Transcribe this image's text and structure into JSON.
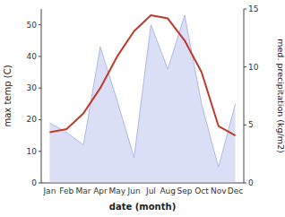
{
  "chart_data": {
    "type": "line",
    "categories": [
      "Jan",
      "Feb",
      "Mar",
      "Apr",
      "May",
      "Jun",
      "Jul",
      "Aug",
      "Sep",
      "Oct",
      "Nov",
      "Dec"
    ],
    "x_label": "date (month)",
    "y_label": "max temp (C)",
    "y2_label": "med. precipitation (kg/m2)",
    "ylim": [
      0,
      55
    ],
    "yticks": [
      0,
      10,
      20,
      30,
      40,
      50
    ],
    "y2lim": [
      0,
      15
    ],
    "y2ticks": [
      0,
      5,
      10,
      15
    ],
    "series": [
      {
        "type": "area",
        "color": "#b0b8e8",
        "values": [
          19,
          16,
          12,
          43,
          26,
          8,
          50,
          36,
          53,
          25,
          5,
          25
        ]
      },
      {
        "type": "line",
        "color": "#c0392b",
        "values": [
          16,
          17,
          22,
          30,
          40,
          48,
          53,
          52,
          45,
          35,
          18,
          15
        ]
      }
    ]
  }
}
